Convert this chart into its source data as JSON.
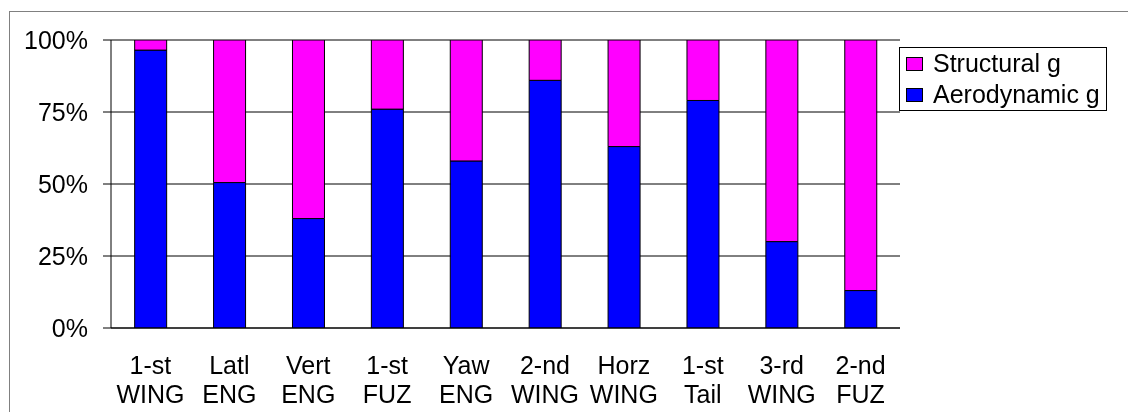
{
  "chart_data": {
    "type": "bar",
    "stacked": true,
    "categories": [
      "1-st\nWING",
      "Latl\nENG",
      "Vert\nENG",
      "1-st\nFUZ",
      "Yaw\nENG",
      "2-nd\nWING",
      "Horz\nWING",
      "1-st\nTail",
      "3-rd\nWING",
      "2-nd\nFUZ"
    ],
    "series": [
      {
        "name": "Aerodynamic g",
        "color": "#0000ff",
        "values": [
          96.5,
          50.5,
          38,
          76,
          58,
          86,
          63,
          79,
          30,
          13
        ]
      },
      {
        "name": "Structural g",
        "color": "#ff00ff",
        "values": [
          3.5,
          49.5,
          62,
          24,
          42,
          14,
          37,
          21,
          70,
          87
        ]
      }
    ],
    "ylim": [
      0,
      100
    ],
    "yticks": [
      {
        "value": 0,
        "label": "0%"
      },
      {
        "value": 25,
        "label": "25%"
      },
      {
        "value": 50,
        "label": "50%"
      },
      {
        "value": 75,
        "label": "75%"
      },
      {
        "value": 100,
        "label": "100%"
      }
    ],
    "grid": "y",
    "legend": "top right"
  }
}
